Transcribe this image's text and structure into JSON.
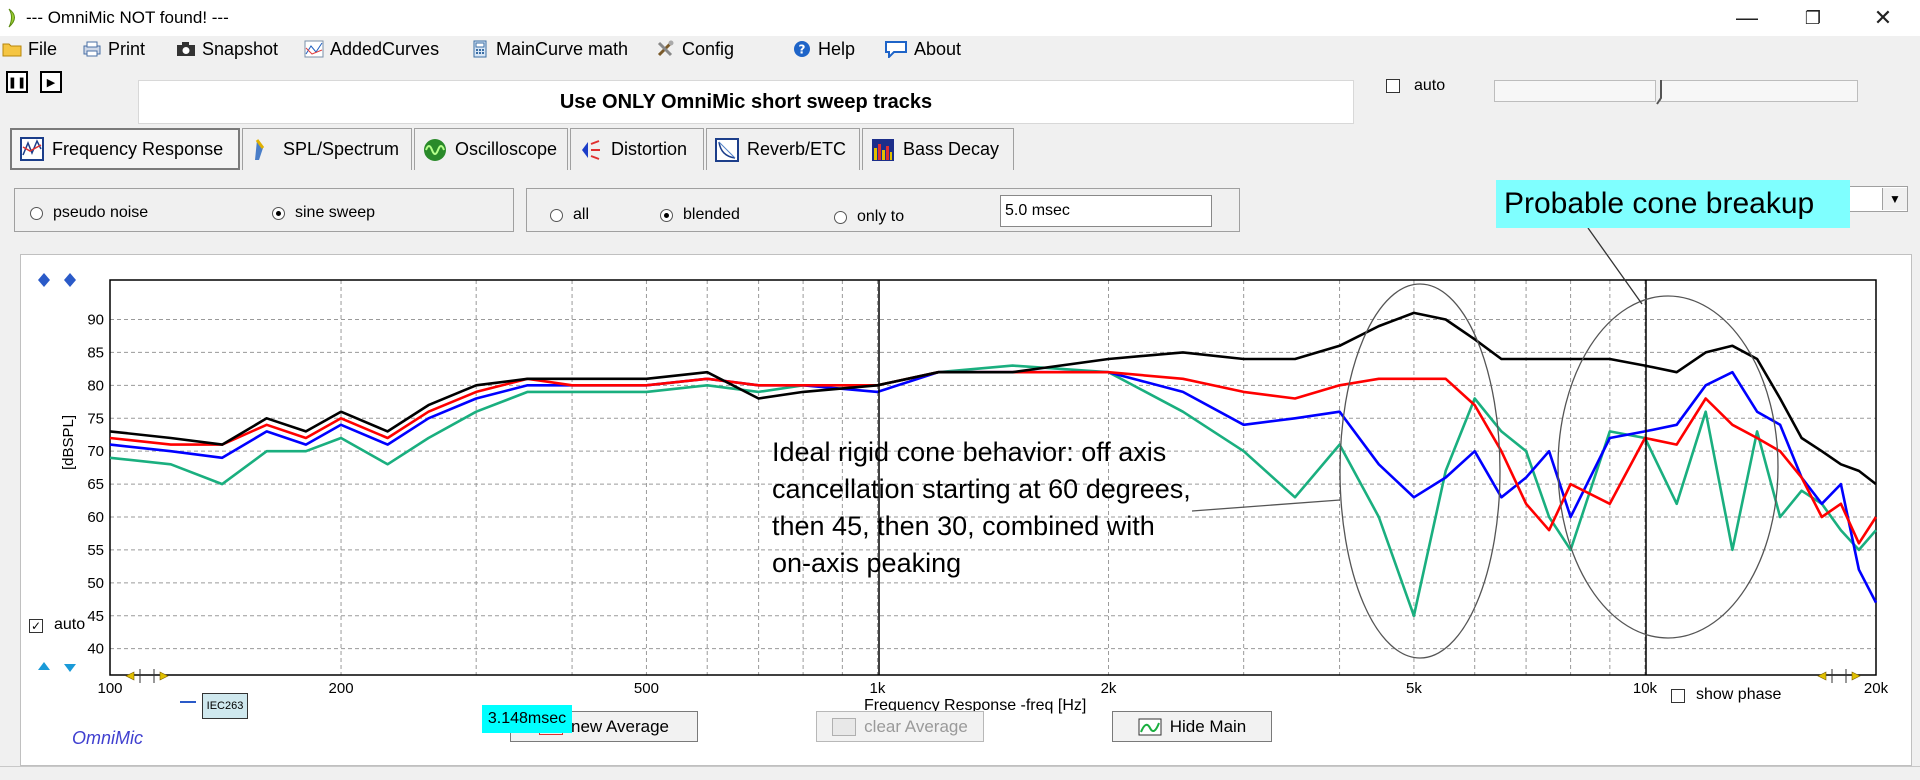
{
  "window": {
    "title": "--- OmniMic NOT found! ---",
    "controls": {
      "minimize": "—",
      "restore": "❐",
      "close": "✕"
    }
  },
  "menu": [
    {
      "label": "File",
      "icon": "folder-icon"
    },
    {
      "label": "Print",
      "icon": "printer-icon"
    },
    {
      "label": "Snapshot",
      "icon": "camera-icon"
    },
    {
      "label": "AddedCurves",
      "icon": "curves-icon"
    },
    {
      "label": "MainCurve math",
      "icon": "calculator-icon"
    },
    {
      "label": "Config",
      "icon": "tools-icon"
    },
    {
      "label": "Help",
      "icon": "help-icon"
    },
    {
      "label": "About",
      "icon": "speech-bubble-icon"
    }
  ],
  "header": {
    "message": "Use ONLY OmniMic short sweep tracks",
    "auto_label": "auto"
  },
  "tabs": [
    {
      "label": "Frequency Response",
      "active": true
    },
    {
      "label": "SPL/Spectrum",
      "active": false
    },
    {
      "label": "Oscilloscope",
      "active": false
    },
    {
      "label": "Distortion",
      "active": false
    },
    {
      "label": "Reverb/ETC",
      "active": false
    },
    {
      "label": "Bass Decay",
      "active": false
    }
  ],
  "signal_group": {
    "options": [
      {
        "label": "pseudo noise",
        "selected": false
      },
      {
        "label": "sine sweep",
        "selected": true
      }
    ]
  },
  "window_group": {
    "options": [
      {
        "label": "all",
        "selected": false
      },
      {
        "label": "blended",
        "selected": true
      },
      {
        "label": "only to",
        "selected": false
      }
    ],
    "delay_value": "5.0 msec"
  },
  "plot": {
    "y_axis_label": "[dBSPL]",
    "x_axis_label": "Frequency Response -freq [Hz]",
    "auto_label": "auto",
    "auto_checked": true,
    "show_phase_label": "show phase",
    "brand": "OmniMic",
    "legend_tag": "IEC263",
    "time_badge": "3.148msec"
  },
  "buttons": {
    "new_average": "new Average",
    "clear_average": "clear Average",
    "hide_main": "Hide Main"
  },
  "annotations": {
    "cone_breakup": "Probable cone breakup",
    "ideal_lines": [
      "Ideal rigid cone behavior: off axis",
      "cancellation starting at 60 degrees,",
      "then 45, then 30, combined with",
      "on-axis peaking"
    ]
  },
  "colors": {
    "on_axis": "#000000",
    "deg30": "#ff0000",
    "deg45": "#0000ff",
    "deg60": "#1aaf7f",
    "annotation_bg": "#7fffff",
    "time_badge_bg": "#00ffff"
  },
  "chart_data": {
    "type": "line",
    "xlabel": "Frequency Response -freq [Hz]",
    "ylabel": "[dBSPL]",
    "x_scale": "log",
    "xlim": [
      100,
      20000
    ],
    "ylim": [
      36,
      96
    ],
    "x_ticks": [
      {
        "value": 100,
        "label": "100"
      },
      {
        "value": 200,
        "label": "200"
      },
      {
        "value": 500,
        "label": "500"
      },
      {
        "value": 1000,
        "label": "1k"
      },
      {
        "value": 2000,
        "label": "2k"
      },
      {
        "value": 5000,
        "label": "5k"
      },
      {
        "value": 10000,
        "label": "10k"
      },
      {
        "value": 20000,
        "label": "20k"
      }
    ],
    "y_ticks": [
      40,
      45,
      50,
      55,
      60,
      65,
      70,
      75,
      80,
      85,
      90
    ],
    "grid": true,
    "series": [
      {
        "color": "#000000",
        "points": [
          [
            100,
            73
          ],
          [
            120,
            72
          ],
          [
            140,
            71
          ],
          [
            160,
            75
          ],
          [
            180,
            73
          ],
          [
            200,
            76
          ],
          [
            230,
            73
          ],
          [
            260,
            77
          ],
          [
            300,
            80
          ],
          [
            350,
            81
          ],
          [
            400,
            81
          ],
          [
            500,
            81
          ],
          [
            600,
            82
          ],
          [
            700,
            78
          ],
          [
            800,
            79
          ],
          [
            1000,
            80
          ],
          [
            1200,
            82
          ],
          [
            1500,
            82
          ],
          [
            2000,
            84
          ],
          [
            2500,
            85
          ],
          [
            3000,
            84
          ],
          [
            3500,
            84
          ],
          [
            4000,
            86
          ],
          [
            4500,
            89
          ],
          [
            5000,
            91
          ],
          [
            5500,
            90
          ],
          [
            6000,
            87
          ],
          [
            6500,
            84
          ],
          [
            7000,
            84
          ],
          [
            8000,
            84
          ],
          [
            9000,
            84
          ],
          [
            10000,
            83
          ],
          [
            11000,
            82
          ],
          [
            12000,
            85
          ],
          [
            13000,
            86
          ],
          [
            14000,
            84
          ],
          [
            15000,
            78
          ],
          [
            16000,
            72
          ],
          [
            17000,
            70
          ],
          [
            18000,
            68
          ],
          [
            19000,
            67
          ],
          [
            20000,
            65
          ]
        ]
      },
      {
        "color": "#ff0000",
        "points": [
          [
            100,
            72
          ],
          [
            120,
            71
          ],
          [
            140,
            71
          ],
          [
            160,
            74
          ],
          [
            180,
            72
          ],
          [
            200,
            75
          ],
          [
            230,
            72
          ],
          [
            260,
            76
          ],
          [
            300,
            79
          ],
          [
            350,
            81
          ],
          [
            400,
            80
          ],
          [
            500,
            80
          ],
          [
            600,
            81
          ],
          [
            700,
            80
          ],
          [
            800,
            80
          ],
          [
            1000,
            80
          ],
          [
            1200,
            82
          ],
          [
            1500,
            82
          ],
          [
            2000,
            82
          ],
          [
            2500,
            81
          ],
          [
            3000,
            79
          ],
          [
            3500,
            78
          ],
          [
            4000,
            80
          ],
          [
            4500,
            81
          ],
          [
            5000,
            81
          ],
          [
            5500,
            81
          ],
          [
            6000,
            77
          ],
          [
            6500,
            70
          ],
          [
            7000,
            62
          ],
          [
            7500,
            58
          ],
          [
            8000,
            65
          ],
          [
            9000,
            62
          ],
          [
            10000,
            72
          ],
          [
            11000,
            71
          ],
          [
            12000,
            78
          ],
          [
            13000,
            74
          ],
          [
            14000,
            72
          ],
          [
            15000,
            70
          ],
          [
            16000,
            66
          ],
          [
            17000,
            60
          ],
          [
            18000,
            62
          ],
          [
            19000,
            56
          ],
          [
            20000,
            60
          ]
        ]
      },
      {
        "color": "#0000ff",
        "points": [
          [
            100,
            71
          ],
          [
            120,
            70
          ],
          [
            140,
            69
          ],
          [
            160,
            73
          ],
          [
            180,
            71
          ],
          [
            200,
            74
          ],
          [
            230,
            71
          ],
          [
            260,
            75
          ],
          [
            300,
            78
          ],
          [
            350,
            80
          ],
          [
            400,
            80
          ],
          [
            500,
            80
          ],
          [
            600,
            81
          ],
          [
            700,
            80
          ],
          [
            800,
            80
          ],
          [
            1000,
            79
          ],
          [
            1200,
            82
          ],
          [
            1500,
            82
          ],
          [
            2000,
            82
          ],
          [
            2500,
            79
          ],
          [
            3000,
            74
          ],
          [
            3500,
            75
          ],
          [
            4000,
            76
          ],
          [
            4500,
            68
          ],
          [
            5000,
            63
          ],
          [
            5500,
            66
          ],
          [
            6000,
            70
          ],
          [
            6500,
            63
          ],
          [
            7000,
            66
          ],
          [
            7500,
            70
          ],
          [
            8000,
            60
          ],
          [
            9000,
            72
          ],
          [
            10000,
            73
          ],
          [
            11000,
            74
          ],
          [
            12000,
            80
          ],
          [
            13000,
            82
          ],
          [
            14000,
            76
          ],
          [
            15000,
            74
          ],
          [
            16000,
            66
          ],
          [
            17000,
            62
          ],
          [
            18000,
            65
          ],
          [
            19000,
            52
          ],
          [
            20000,
            47
          ]
        ]
      },
      {
        "color": "#1aaf7f",
        "points": [
          [
            100,
            69
          ],
          [
            120,
            68
          ],
          [
            140,
            65
          ],
          [
            160,
            70
          ],
          [
            180,
            70
          ],
          [
            200,
            72
          ],
          [
            230,
            68
          ],
          [
            260,
            72
          ],
          [
            300,
            76
          ],
          [
            350,
            79
          ],
          [
            400,
            79
          ],
          [
            500,
            79
          ],
          [
            600,
            80
          ],
          [
            700,
            79
          ],
          [
            800,
            80
          ],
          [
            1000,
            80
          ],
          [
            1200,
            82
          ],
          [
            1500,
            83
          ],
          [
            2000,
            82
          ],
          [
            2500,
            76
          ],
          [
            3000,
            70
          ],
          [
            3500,
            63
          ],
          [
            4000,
            71
          ],
          [
            4500,
            60
          ],
          [
            5000,
            45
          ],
          [
            5500,
            67
          ],
          [
            6000,
            78
          ],
          [
            6500,
            73
          ],
          [
            7000,
            70
          ],
          [
            7500,
            60
          ],
          [
            8000,
            55
          ],
          [
            9000,
            73
          ],
          [
            10000,
            72
          ],
          [
            11000,
            62
          ],
          [
            12000,
            76
          ],
          [
            13000,
            55
          ],
          [
            14000,
            73
          ],
          [
            15000,
            60
          ],
          [
            16000,
            64
          ],
          [
            17000,
            62
          ],
          [
            18000,
            58
          ],
          [
            19000,
            55
          ],
          [
            20000,
            58
          ]
        ]
      }
    ]
  }
}
